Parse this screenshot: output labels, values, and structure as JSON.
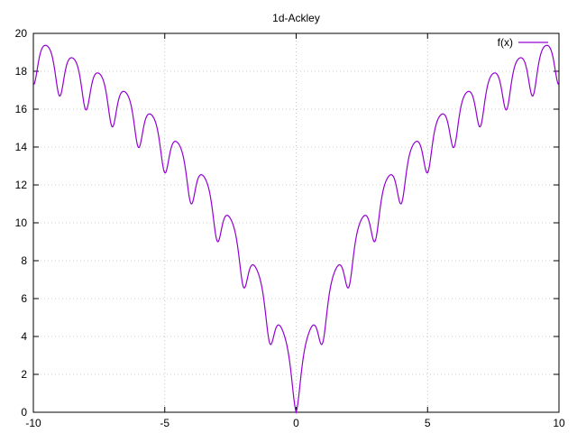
{
  "chart_data": {
    "type": "line",
    "title": "1d-Ackley",
    "xlabel": "",
    "ylabel": "",
    "xlim": [
      -10,
      10
    ],
    "ylim": [
      0,
      20
    ],
    "x_ticks": [
      -10,
      -5,
      0,
      5,
      10
    ],
    "y_ticks": [
      0,
      2,
      4,
      6,
      8,
      10,
      12,
      14,
      16,
      18,
      20
    ],
    "grid": true,
    "legend_position": "top-right",
    "series": [
      {
        "name": "f(x)",
        "color": "#9400d3",
        "function": "-20*exp(-0.2*sqrt(x^2)) - exp(cos(2*pi*x)) + 20 + e",
        "x": [
          -10,
          -9.5,
          -9,
          -8.5,
          -8,
          -7.5,
          -7,
          -6.5,
          -6,
          -5.5,
          -5,
          -4.5,
          -4,
          -3.5,
          -3,
          -2.5,
          -2,
          -1.5,
          -1,
          -0.5,
          0,
          0.5,
          1,
          1.5,
          2,
          2.5,
          3,
          3.5,
          4,
          4.5,
          5,
          5.5,
          6,
          6.5,
          7,
          7.5,
          8,
          8.5,
          9,
          9.5,
          10
        ],
        "y": [
          17.29,
          19.35,
          16.71,
          18.74,
          16.0,
          17.94,
          15.14,
          16.96,
          14.07,
          15.75,
          12.73,
          14.25,
          11.05,
          12.38,
          8.95,
          10.06,
          6.36,
          7.17,
          3.11,
          3.54,
          0.0,
          3.54,
          3.11,
          7.17,
          6.36,
          10.06,
          8.95,
          12.38,
          11.05,
          14.25,
          12.73,
          15.75,
          14.07,
          16.96,
          15.14,
          17.94,
          16.0,
          18.74,
          16.71,
          19.35,
          17.29
        ]
      }
    ]
  }
}
